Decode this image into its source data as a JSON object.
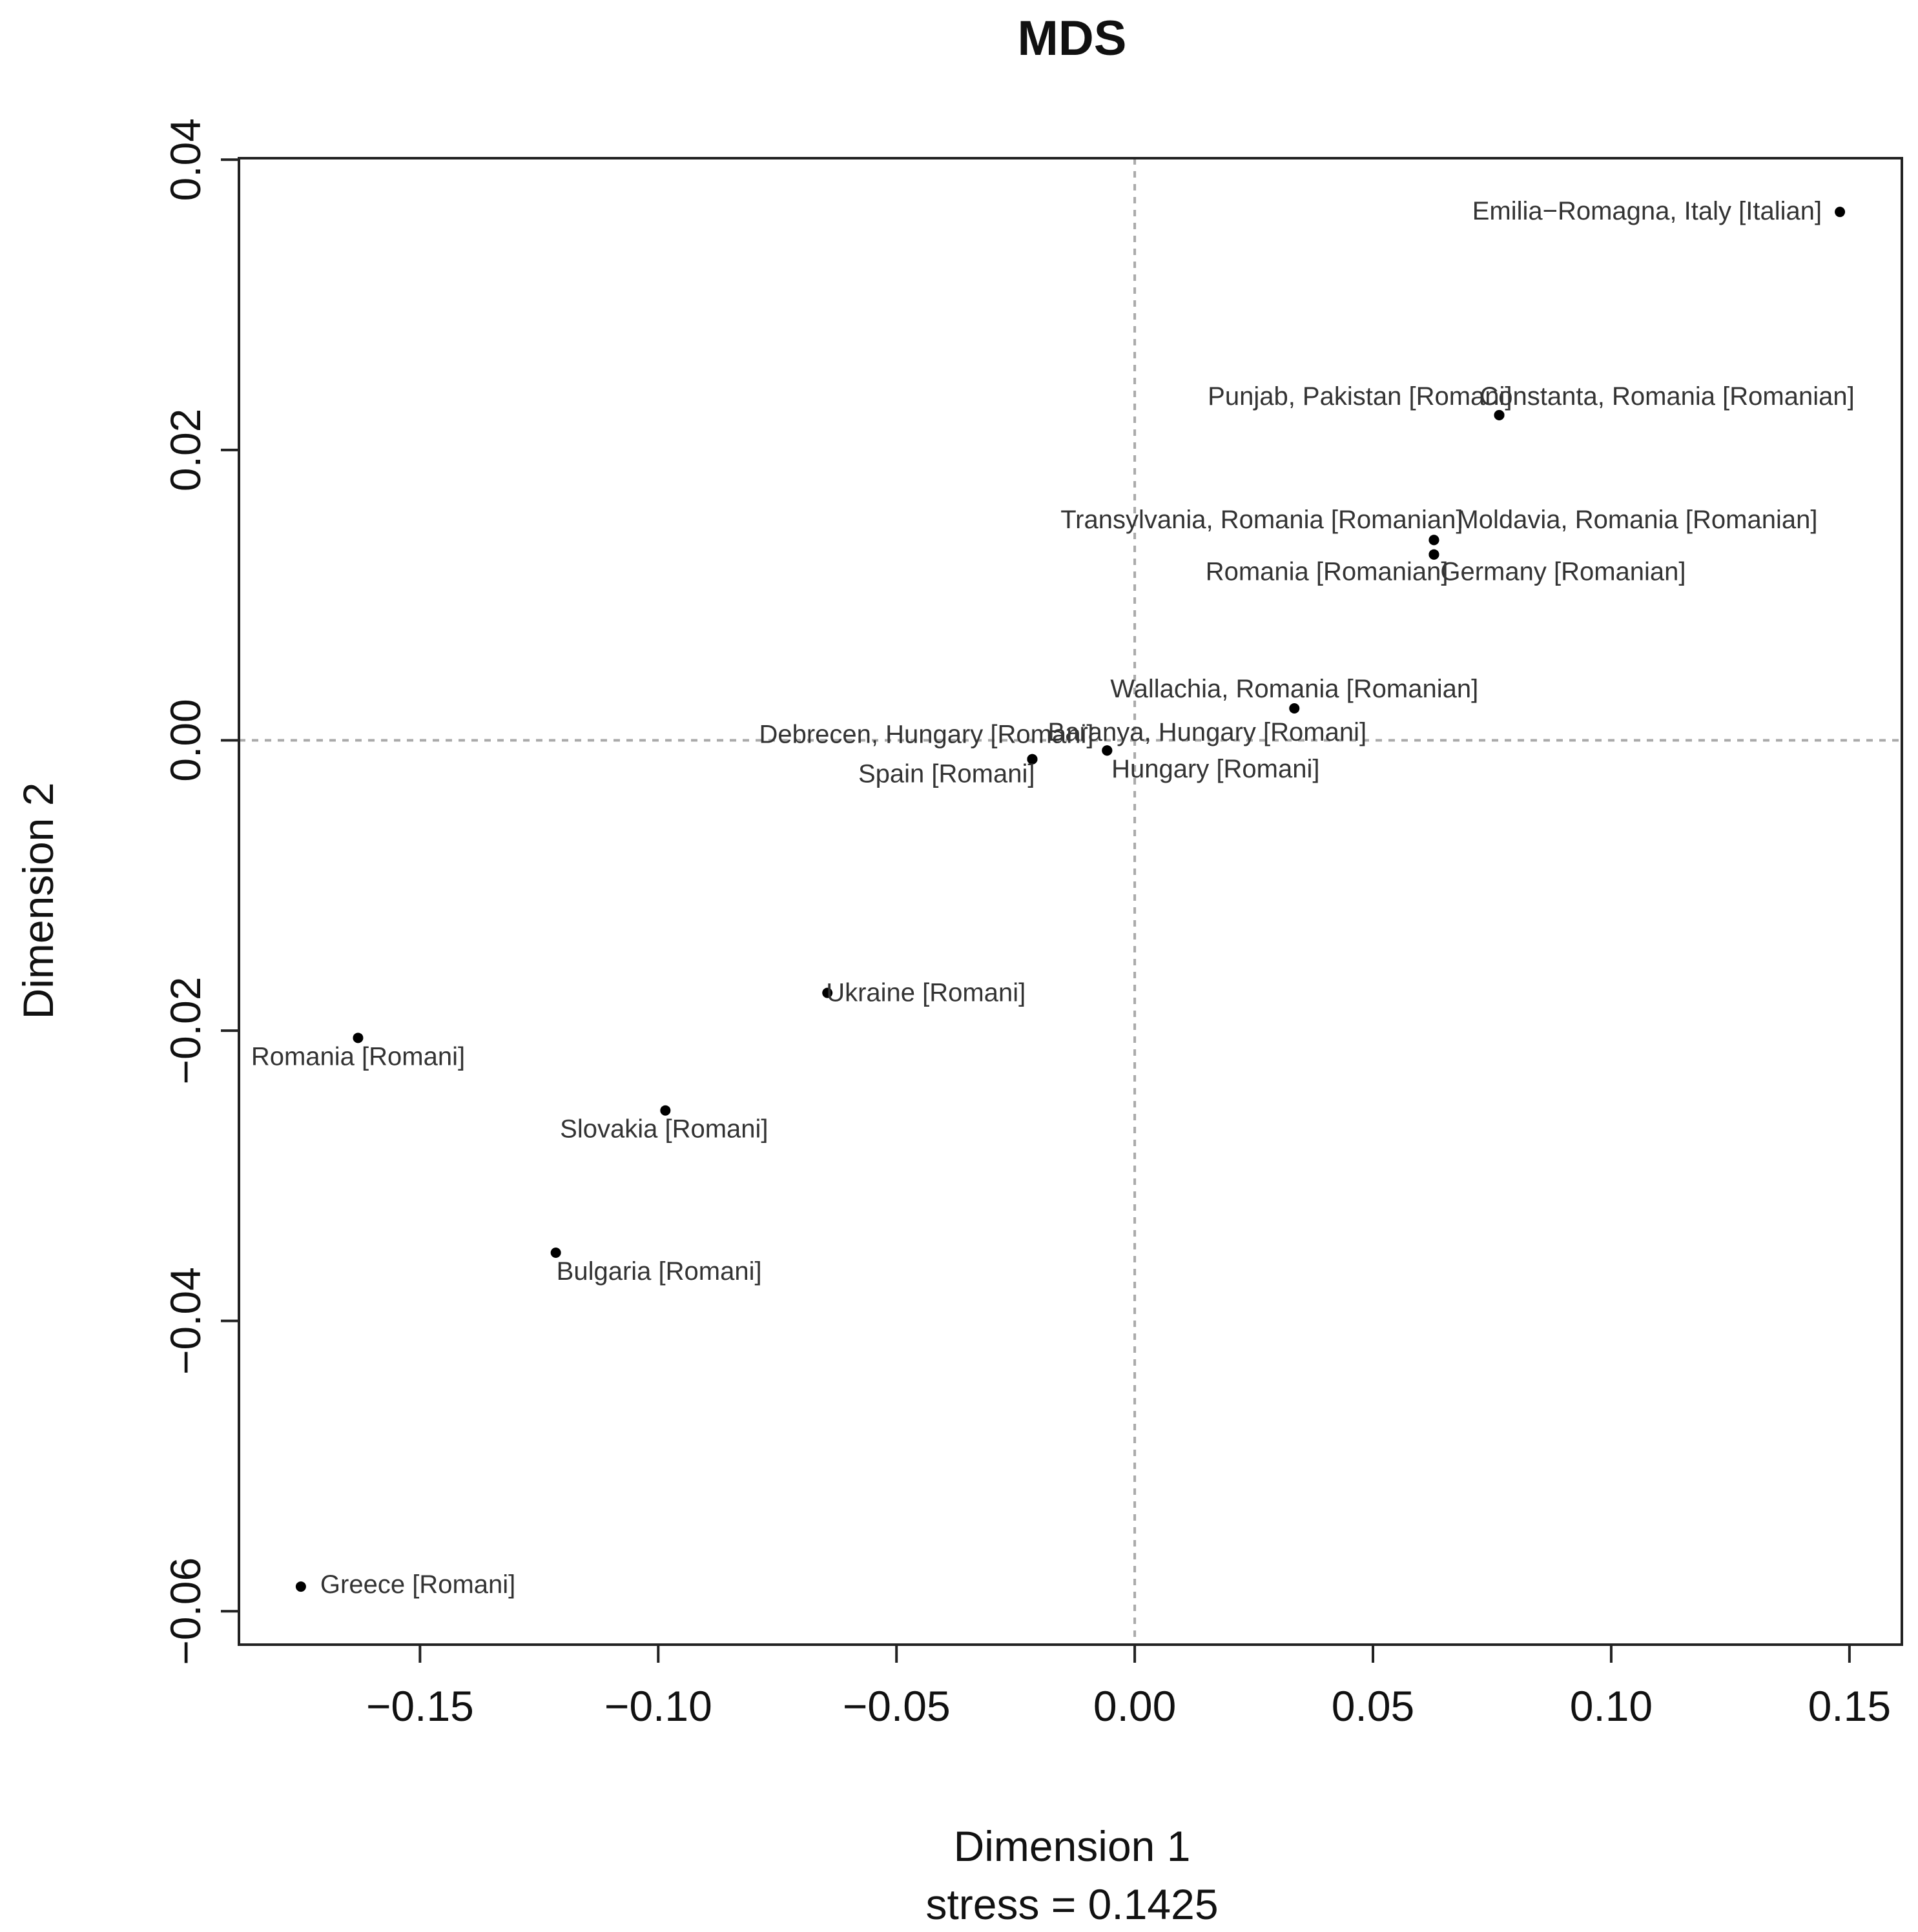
{
  "chart_data": {
    "type": "scatter",
    "title": "MDS",
    "xlabel": "Dimension 1",
    "ylabel": "Dimension 2",
    "subtitle": "stress = 0.1425",
    "xlim": [
      -0.188,
      0.161
    ],
    "ylim": [
      -0.0623,
      0.0401
    ],
    "xticks": [
      -0.15,
      -0.1,
      -0.05,
      0.0,
      0.05,
      0.1,
      0.15
    ],
    "xtick_labels": [
      "−0.15",
      "−0.10",
      "−0.05",
      "0.00",
      "0.05",
      "0.10",
      "0.15"
    ],
    "yticks": [
      -0.06,
      -0.04,
      -0.02,
      0.0,
      0.02,
      0.04
    ],
    "ytick_labels": [
      "−0.06",
      "−0.04",
      "−0.02",
      "0.00",
      "0.02",
      "0.04"
    ],
    "reference_lines": {
      "x": 0,
      "y": 0
    },
    "points": [
      {
        "label": "Emilia−Romagna, Italy [Italian]",
        "x": 0.148,
        "y": 0.0364
      },
      {
        "label": "Punjab, Pakistan [Romani]",
        "x": 0.0765,
        "y": 0.0224
      },
      {
        "label": "Constanta, Romania [Romanian]",
        "x": 0.0765,
        "y": 0.0224
      },
      {
        "label": "Transylvania, Romania [Romanian]",
        "x": 0.0628,
        "y": 0.0138
      },
      {
        "label": "Moldavia, Romania [Romanian]",
        "x": 0.0628,
        "y": 0.0138
      },
      {
        "label": "Romania [Romanian]",
        "x": 0.0628,
        "y": 0.0128
      },
      {
        "label": "Germany [Romanian]",
        "x": 0.0628,
        "y": 0.0128
      },
      {
        "label": "Wallachia, Romania [Romanian]",
        "x": 0.0335,
        "y": 0.0022
      },
      {
        "label": "Debrecen, Hungary [Romani]",
        "x": -0.0215,
        "y": -0.0013
      },
      {
        "label": "Spain [Romani]",
        "x": -0.0215,
        "y": -0.0013
      },
      {
        "label": "Baranya, Hungary [Romani]",
        "x": -0.0058,
        "y": -0.0007
      },
      {
        "label": "Hungary [Romani]",
        "x": -0.0058,
        "y": -0.0007
      },
      {
        "label": "Ukraine [Romani]",
        "x": -0.0645,
        "y": -0.0174
      },
      {
        "label": "Romania [Romani]",
        "x": -0.163,
        "y": -0.0205
      },
      {
        "label": "Slovakia [Romani]",
        "x": -0.0985,
        "y": -0.0255
      },
      {
        "label": "Bulgaria [Romani]",
        "x": -0.1215,
        "y": -0.0353
      },
      {
        "label": "Greece [Romani]",
        "x": -0.175,
        "y": -0.0583
      }
    ]
  }
}
